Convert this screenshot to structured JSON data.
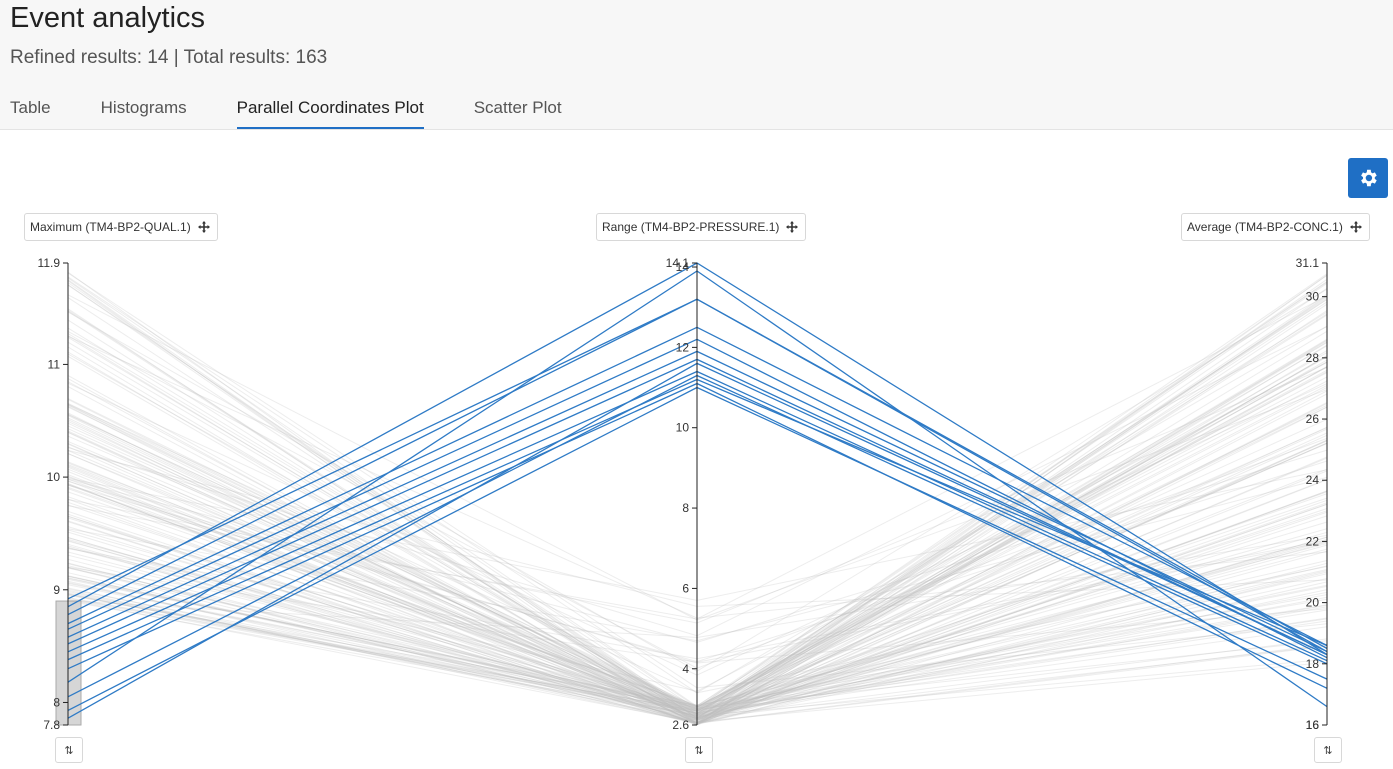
{
  "header": {
    "title": "Event analytics",
    "subtitle": "Refined results: 14 | Total results: 163"
  },
  "tabs": [
    {
      "label": "Table",
      "active": false
    },
    {
      "label": "Histograms",
      "active": false
    },
    {
      "label": "Parallel Coordinates Plot",
      "active": true
    },
    {
      "label": "Scatter Plot",
      "active": false
    }
  ],
  "settings": {
    "icon": "gear-icon"
  },
  "colors": {
    "selected_line": "#2f7bc6",
    "context_line": "#bdbdbd",
    "accent": "#1f6fc5"
  },
  "chart_data": {
    "type": "parallel-coordinates",
    "axes": [
      {
        "label": "Maximum (TM4-BP2-QUAL.1)",
        "min": 7.8,
        "max": 11.9,
        "ticks": [
          8,
          9,
          10,
          11
        ],
        "endLabels": [
          "7.8",
          "11.9"
        ],
        "brush": [
          7.8,
          8.9
        ]
      },
      {
        "label": "Range (TM4-BP2-PRESSURE.1)",
        "min": 2.6,
        "max": 14.1,
        "ticks": [
          4,
          6,
          8,
          10,
          12,
          14
        ],
        "endLabels": [
          "2.6",
          "14.1"
        ],
        "brush": null
      },
      {
        "label": "Average (TM4-BP2-CONC.1)",
        "min": 16,
        "max": 31.1,
        "ticks": [
          16,
          18,
          20,
          22,
          24,
          26,
          28,
          30
        ],
        "endLabels": [
          "16",
          "31.1"
        ],
        "brush": null
      }
    ],
    "counts": {
      "refined": 14,
      "total": 163
    },
    "selected": [
      [
        8.92,
        13.2,
        18.4
      ],
      [
        8.85,
        14.1,
        18.3
      ],
      [
        8.78,
        13.2,
        18.5
      ],
      [
        8.7,
        12.5,
        18.6
      ],
      [
        8.65,
        12.2,
        18.2
      ],
      [
        8.58,
        11.9,
        18.4
      ],
      [
        8.52,
        11.7,
        18.3
      ],
      [
        8.45,
        11.4,
        18.1
      ],
      [
        8.38,
        11.2,
        18.6
      ],
      [
        8.3,
        11.1,
        17.2
      ],
      [
        8.18,
        13.9,
        16.6
      ],
      [
        8.05,
        11.3,
        18.0
      ],
      [
        7.93,
        11.0,
        17.5
      ],
      [
        7.86,
        11.6,
        18.3
      ]
    ],
    "flip_label": "⇅"
  }
}
